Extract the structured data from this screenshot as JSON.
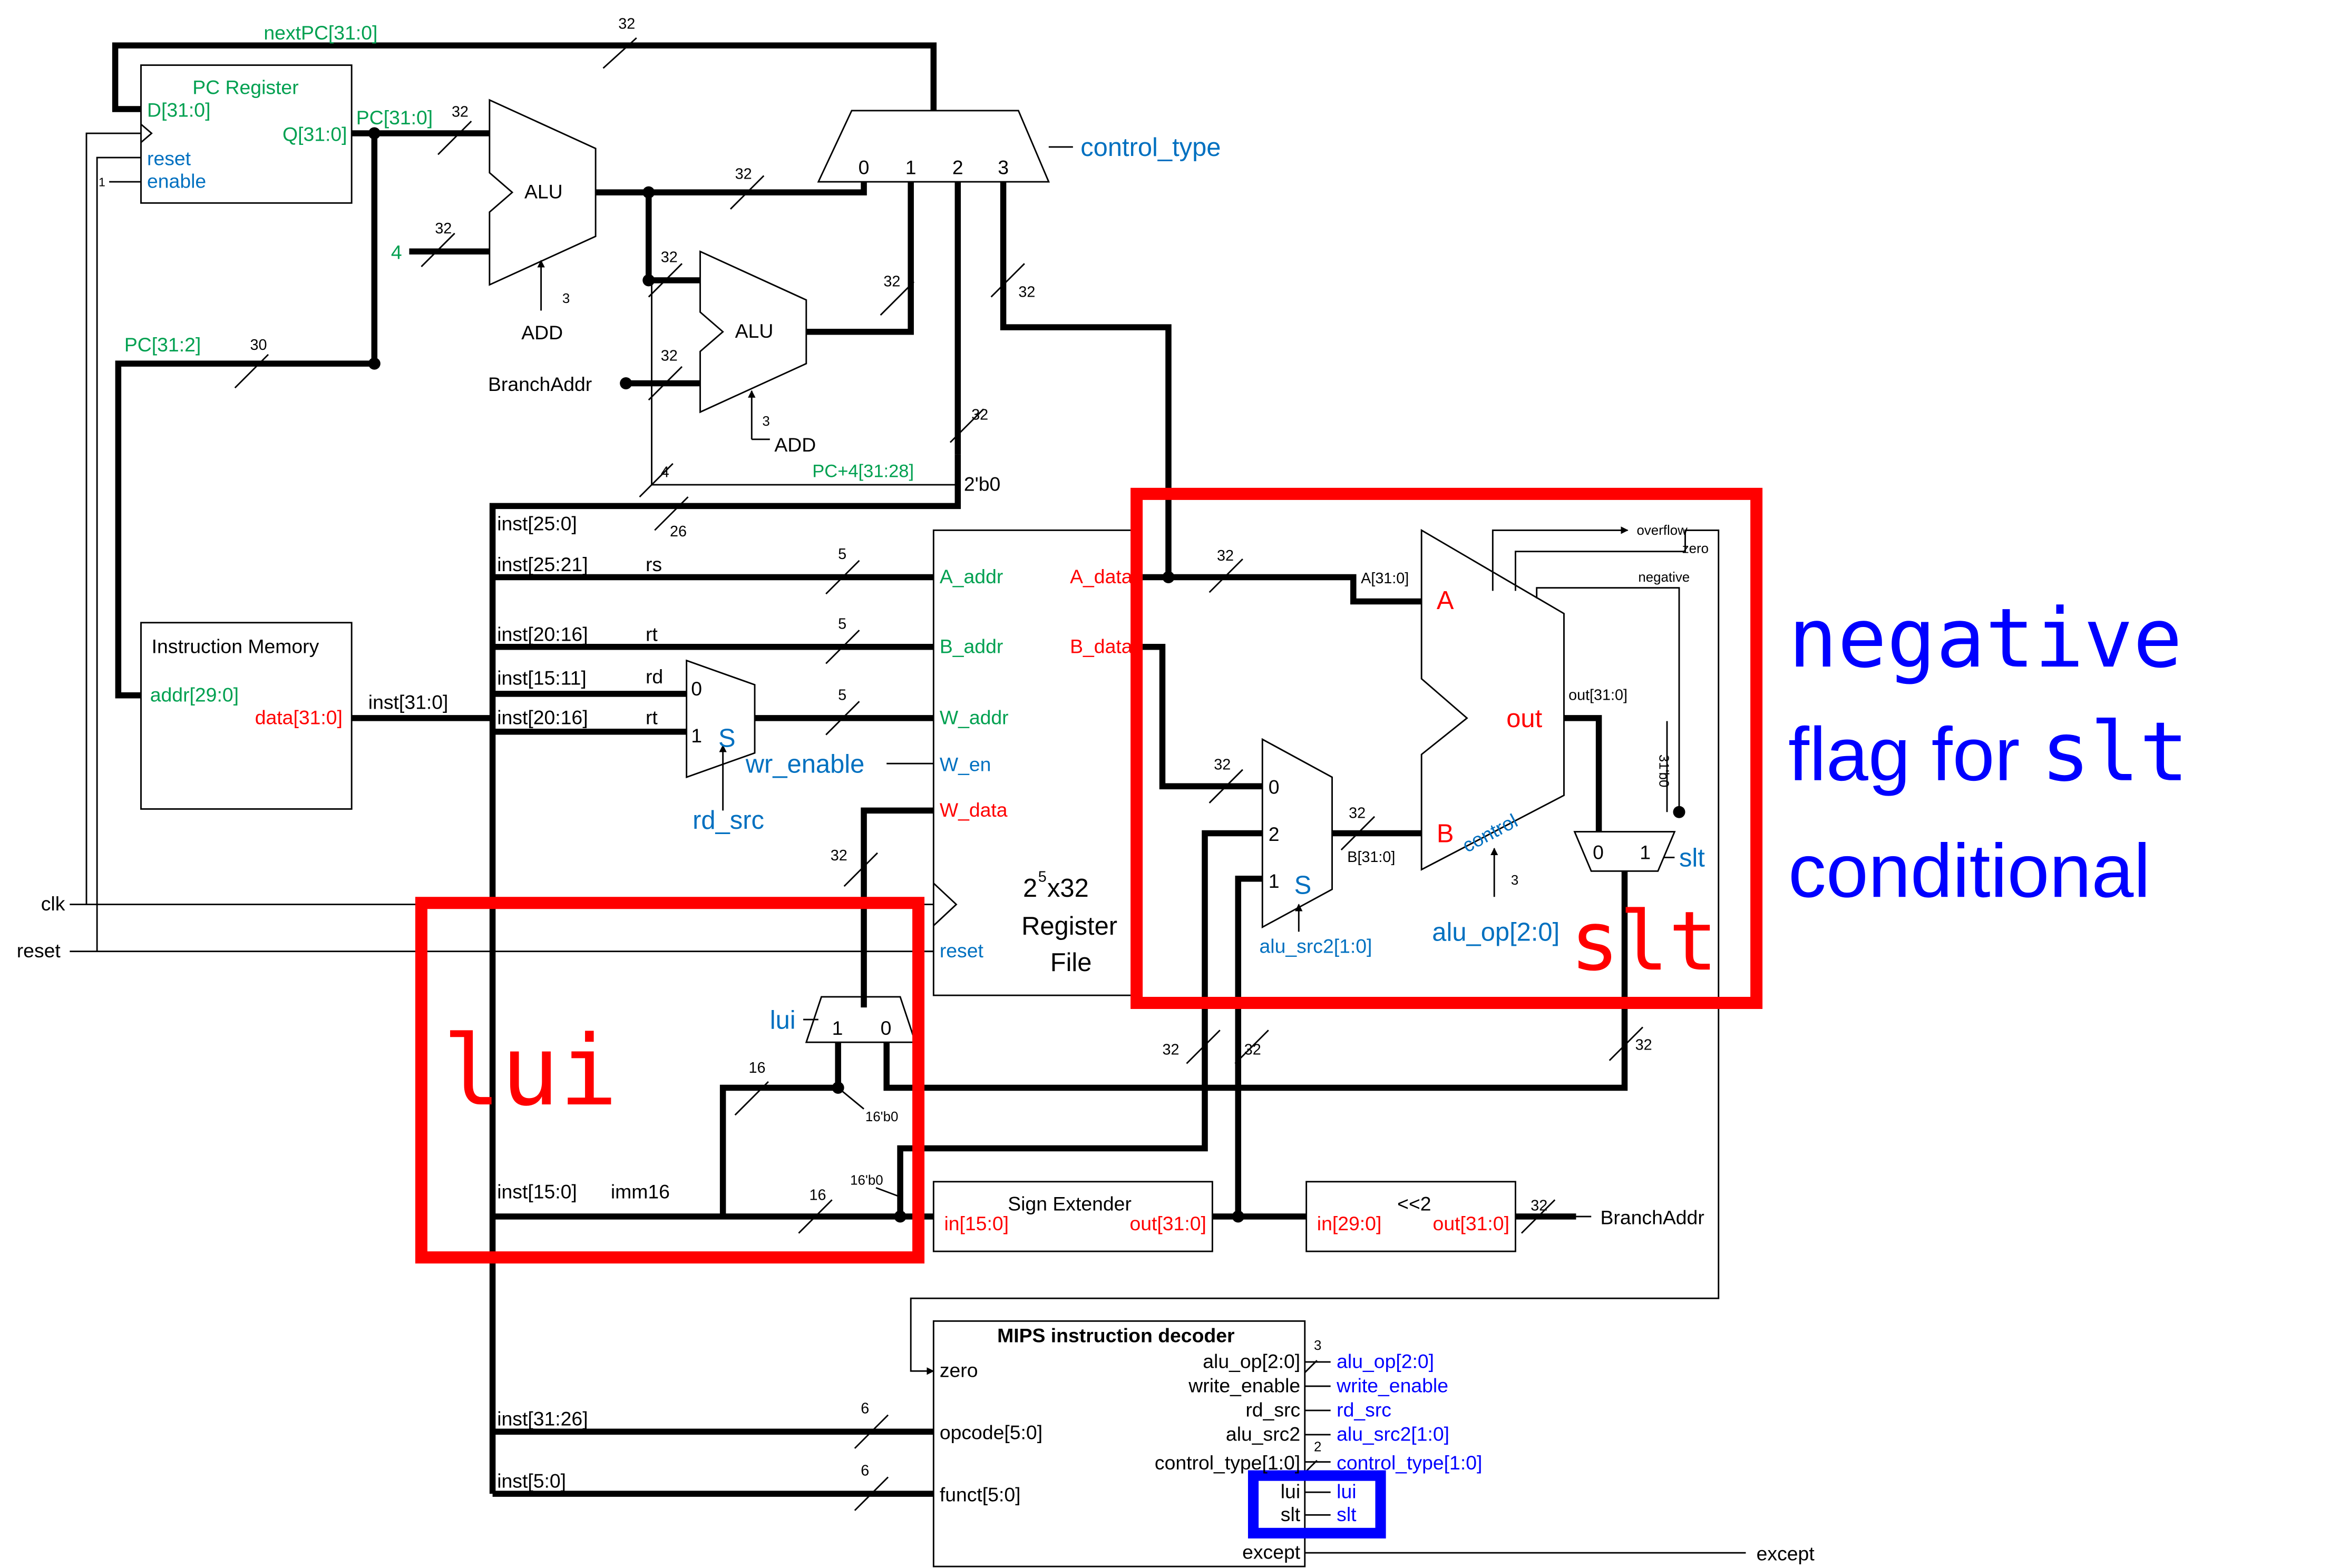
{
  "colors": {
    "wire": "#000000",
    "green": "#00a050",
    "red": "#ff0000",
    "blue": "#0070c0",
    "bright_blue": "#0000ff",
    "box_red": "#ff0000",
    "box_blue": "#0000ff"
  },
  "labels": {
    "nextpc": "nextPC[31:0]",
    "w32": "32",
    "w30": "30",
    "w16": "16",
    "w5": "5",
    "w6": "6",
    "w4": "4",
    "w26": "26",
    "w3": "3",
    "w2": "2",
    "w1": "1",
    "pcreg_title": "PC Register",
    "pcreg_d": "D[31:0]",
    "pcreg_q": "Q[31:0]",
    "pcreg_reset": "reset",
    "pcreg_enable": "enable",
    "pc310": "PC[31:0]",
    "pc312": "PC[31:2]",
    "const4": "4",
    "alu": "ALU",
    "add": "ADD",
    "branchaddr": "BranchAddr",
    "mux_0": "0",
    "mux_1": "1",
    "mux_2": "2",
    "mux_3": "3",
    "control_type": "control_type",
    "pc4": "PC+4[31:28]",
    "two_b0": "2'b0",
    "imem_title": "Instruction Memory",
    "imem_addr": "addr[29:0]",
    "imem_data": "data[31:0]",
    "inst310": "inst[31:0]",
    "inst250": "inst[25:0]",
    "inst2521": "inst[25:21]",
    "inst2016": "inst[20:16]",
    "inst1511": "inst[15:11]",
    "inst150": "inst[15:0]",
    "inst3126": "inst[31:26]",
    "inst50": "inst[5:0]",
    "rs": "rs",
    "rt": "rt",
    "rd": "rd",
    "imm16": "imm16",
    "s": "S",
    "rd_src": "rd_src",
    "wr_enable": "wr_enable",
    "a_addr": "A_addr",
    "b_addr": "B_addr",
    "w_addr": "W_addr",
    "w_en": "W_en",
    "w_data": "W_data",
    "a_data": "A_data",
    "b_data": "B_data",
    "reset": "reset",
    "rf_size": "2",
    "rf_exp": "5",
    "rf_size_rest": "x32",
    "register": "Register",
    "file": "File",
    "clk": "clk",
    "a310": "A[31:0]",
    "b310": "B[31:0]",
    "big_a": "A",
    "big_b": "B",
    "out": "out",
    "out310": "out[31:0]",
    "control": "control",
    "overflow": "overflow",
    "zero": "zero",
    "negative": "negative",
    "alu_op": "alu_op[2:0]",
    "alu_src2": "alu_src2[1:0]",
    "slt": "slt",
    "slt_big": "slt",
    "lui": "lui",
    "lui_big": "lui",
    "bit31": "31'b0",
    "sixteen_b0": "16'b0",
    "se_title": "Sign Extender",
    "in150": "in[15:0]",
    "out310b": "out[31:0]",
    "shl2": "<<2",
    "in290": "in[29:0]",
    "dec_title": "MIPS instruction decoder",
    "dec_zero": "zero",
    "dec_opcode": "opcode[5:0]",
    "dec_funct": "funct[5:0]",
    "dec_aluop": "alu_op[2:0]",
    "dec_we": "write_enable",
    "dec_rdsrc": "rd_src",
    "dec_alusrc2": "alu_src2",
    "dec_ctrl": "control_type[1:0]",
    "dec_lui": "lui",
    "dec_slt": "slt",
    "dec_except": "except",
    "out_aluop": "alu_op[2:0]",
    "out_we": "write_enable",
    "out_rdsrc": "rd_src",
    "out_alusrc2": "alu_src2[1:0]",
    "out_ctrl": "control_type[1:0]",
    "out_lui": "lui",
    "out_slt": "slt",
    "except": "except"
  },
  "callout": {
    "line1": "negative",
    "line2a": "flag for ",
    "line2b": "slt",
    "line3": "conditional"
  }
}
